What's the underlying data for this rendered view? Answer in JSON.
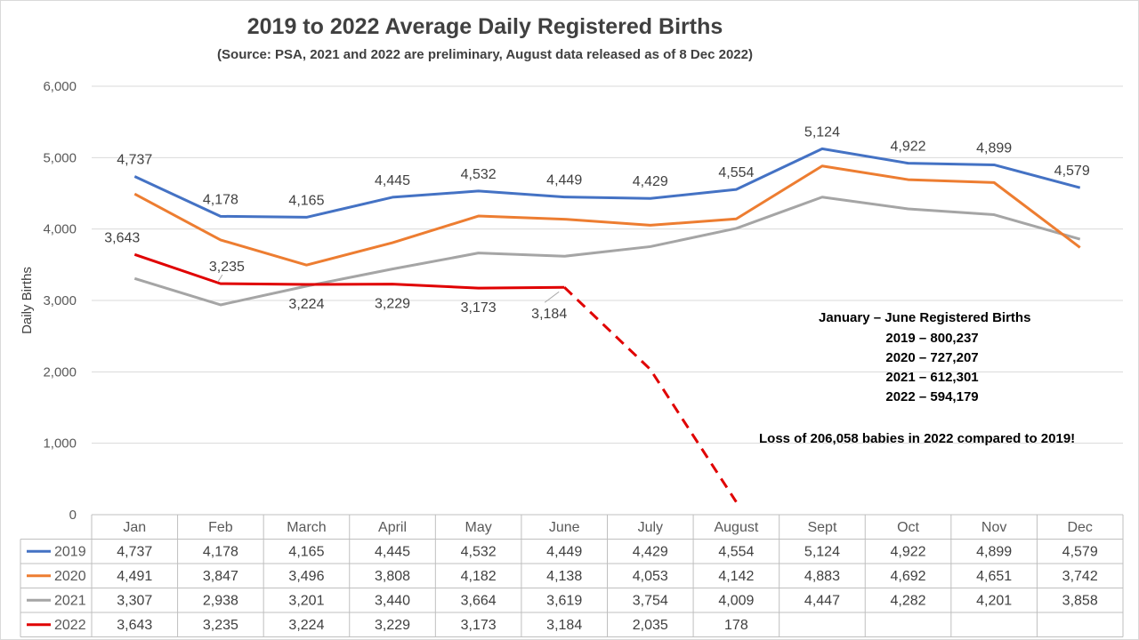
{
  "chart_data": {
    "type": "line",
    "title": "2019 to 2022 Average Daily Registered Births",
    "subtitle": "(Source: PSA, 2021 and 2022 are preliminary, August data released as of 8 Dec 2022)",
    "ylabel": "Daily Births",
    "xlabel": "",
    "ylim": [
      0,
      6000
    ],
    "yticks": [
      "0",
      "1,000",
      "2,000",
      "3,000",
      "4,000",
      "5,000",
      "6,000"
    ],
    "grid": true,
    "legend": "data-table",
    "categories": [
      "Jan",
      "Feb",
      "March",
      "April",
      "May",
      "June",
      "July",
      "August",
      "Sept",
      "Oct",
      "Nov",
      "Dec"
    ],
    "series": [
      {
        "name": "2019",
        "color": "#4472c4",
        "dashed_from": null,
        "values": [
          4737,
          4178,
          4165,
          4445,
          4532,
          4449,
          4429,
          4554,
          5124,
          4922,
          4899,
          4579
        ],
        "table": [
          "4,737",
          "4,178",
          "4,165",
          "4,445",
          "4,532",
          "4,449",
          "4,429",
          "4,554",
          "5,124",
          "4,922",
          "4,899",
          "4,579"
        ],
        "labels": [
          "4,737",
          "4,178",
          "4,165",
          "4,445",
          "4,532",
          "4,449",
          "4,429",
          "4,554",
          "5,124",
          "4,922",
          "4,899",
          "4,579"
        ]
      },
      {
        "name": "2020",
        "color": "#ed7d31",
        "dashed_from": null,
        "values": [
          4491,
          3847,
          3496,
          3808,
          4182,
          4138,
          4053,
          4142,
          4883,
          4692,
          4651,
          3742
        ],
        "table": [
          "4,491",
          "3,847",
          "3,496",
          "3,808",
          "4,182",
          "4,138",
          "4,053",
          "4,142",
          "4,883",
          "4,692",
          "4,651",
          "3,742"
        ],
        "labels": []
      },
      {
        "name": "2021",
        "color": "#a5a5a5",
        "dashed_from": null,
        "values": [
          3307,
          2938,
          3201,
          3440,
          3664,
          3619,
          3754,
          4009,
          4447,
          4282,
          4201,
          3858
        ],
        "table": [
          "3,307",
          "2,938",
          "3,201",
          "3,440",
          "3,664",
          "3,619",
          "3,754",
          "4,009",
          "4,447",
          "4,282",
          "4,201",
          "3,858"
        ],
        "labels": []
      },
      {
        "name": "2022",
        "color": "#e00000",
        "dashed_from": 5,
        "values": [
          3643,
          3235,
          3224,
          3229,
          3173,
          3184,
          2035,
          178,
          null,
          null,
          null,
          null
        ],
        "table": [
          "3,643",
          "3,235",
          "3,224",
          "3,229",
          "3,173",
          "3,184",
          "2,035",
          "178",
          "",
          "",
          "",
          ""
        ],
        "labels": [
          "3,643",
          "3,235",
          "3,224",
          "3,229",
          "3,173",
          "3,184"
        ]
      }
    ]
  },
  "notes": {
    "heading": "January – June Registered Births",
    "lines": [
      "2019 – 800,237",
      "2020 – 727,207",
      "2021 – 612,301",
      "2022 – 594,179"
    ],
    "loss": "Loss of 206,058 babies in 2022 compared to 2019!"
  }
}
